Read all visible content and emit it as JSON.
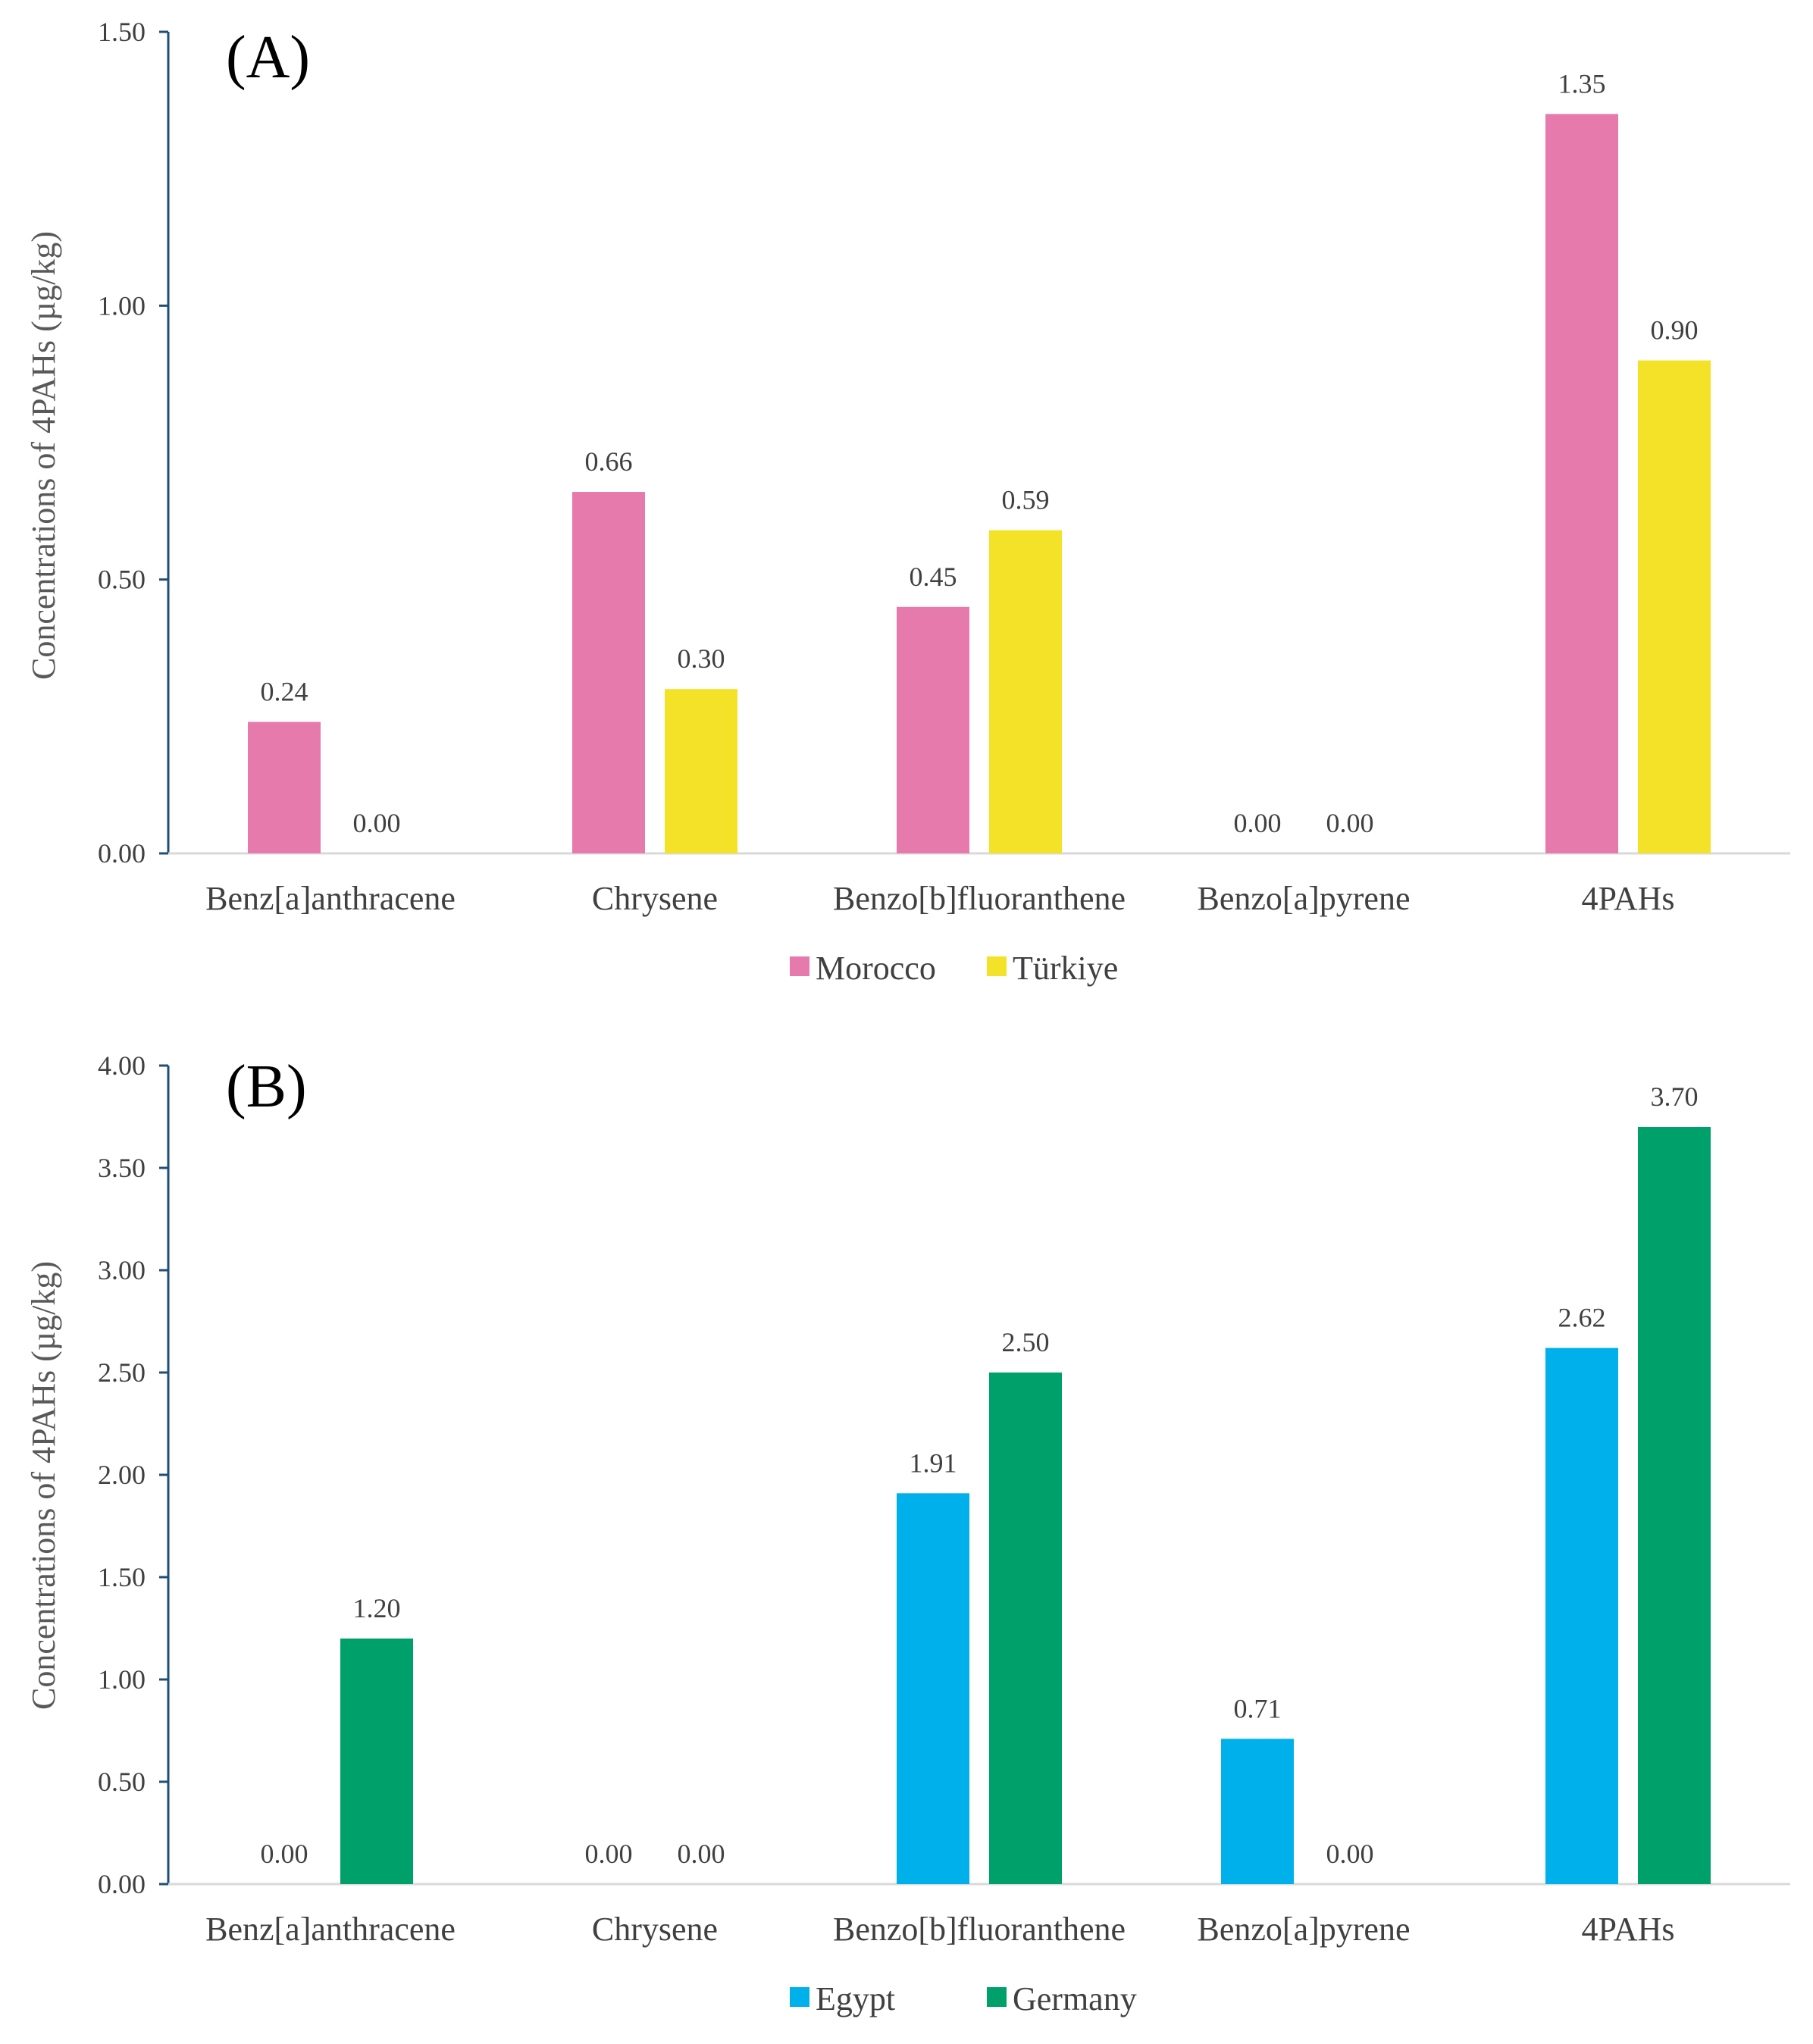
{
  "chart_data": [
    {
      "type": "bar",
      "panel_label": "(A)",
      "ylabel": "Concentrations of 4PAHs (µg/kg)",
      "xlabel": "",
      "ylim": [
        0,
        1.5
      ],
      "yticks": [
        0,
        0.5,
        1.0,
        1.5
      ],
      "ytick_labels": [
        "0.00",
        "0.50",
        "1.00",
        "1.50"
      ],
      "categories": [
        "Benz[a]anthracene",
        "Chrysene",
        "Benzo[b]fluoranthene",
        "Benzo[a]pyrene",
        "4PAHs"
      ],
      "series": [
        {
          "name": "Morocco",
          "color": "#E77AAC",
          "values": [
            0.24,
            0.66,
            0.45,
            0.0,
            1.35
          ],
          "labels": [
            "0.24",
            "0.66",
            "0.45",
            "0.00",
            "1.35"
          ]
        },
        {
          "name": "Türkiye",
          "color": "#F4E229",
          "values": [
            0.0,
            0.3,
            0.59,
            0.0,
            0.9
          ],
          "labels": [
            "0.00",
            "0.30",
            "0.59",
            "0.00",
            "0.90"
          ]
        }
      ],
      "legend": "bottom-center",
      "grid": false
    },
    {
      "type": "bar",
      "panel_label": "(B)",
      "ylabel": "Concentrations of 4PAHs (µg/kg)",
      "xlabel": "",
      "ylim": [
        0,
        4.0
      ],
      "yticks": [
        0,
        0.5,
        1.0,
        1.5,
        2.0,
        2.5,
        3.0,
        3.5,
        4.0
      ],
      "ytick_labels": [
        "0.00",
        "0.50",
        "1.00",
        "1.50",
        "2.00",
        "2.50",
        "3.00",
        "3.50",
        "4.00"
      ],
      "categories": [
        "Benz[a]anthracene",
        "Chrysene",
        "Benzo[b]fluoranthene",
        "Benzo[a]pyrene",
        "4PAHs"
      ],
      "series": [
        {
          "name": "Egypt",
          "color": "#00B0EA",
          "values": [
            0.0,
            0.0,
            1.91,
            0.71,
            2.62
          ],
          "labels": [
            "0.00",
            "0.00",
            "1.91",
            "0.71",
            "2.62"
          ]
        },
        {
          "name": "Germany",
          "color": "#00A06A",
          "values": [
            1.2,
            0.0,
            2.5,
            0.0,
            3.7
          ],
          "labels": [
            "1.20",
            "0.00",
            "2.50",
            "0.00",
            "3.70"
          ]
        }
      ],
      "legend": "bottom-center",
      "grid": false
    }
  ]
}
